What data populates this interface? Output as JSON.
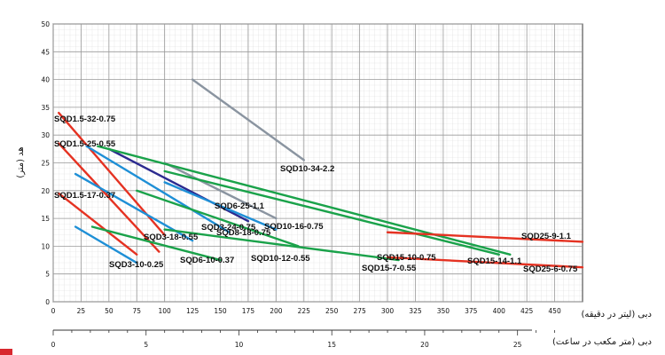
{
  "chart_data": {
    "type": "line",
    "xlabel": "دبی (لیتر در دقیقه)",
    "x2label": "دبی (متر مکعب در ساعت)",
    "ylabel": "هد (متر)",
    "xlim": [
      0,
      475
    ],
    "ylim": [
      0,
      50
    ],
    "x2lim": [
      0,
      28.5
    ],
    "xticks": [
      0,
      25,
      50,
      75,
      100,
      125,
      150,
      175,
      200,
      225,
      250,
      275,
      300,
      325,
      350,
      375,
      400,
      425,
      450
    ],
    "yticks": [
      0,
      5,
      10,
      15,
      20,
      25,
      30,
      35,
      40,
      45,
      50
    ],
    "x2ticks": [
      0,
      5,
      10,
      15,
      20,
      25
    ],
    "grid": true,
    "series": [
      {
        "name": "SQD1.5-32-0.75",
        "color": "#e53222",
        "points": [
          [
            5,
            34
          ],
          [
            100,
            12
          ]
        ]
      },
      {
        "name": "SQD1.5-25-0.55",
        "color": "#e53222",
        "points": [
          [
            5,
            28.5
          ],
          [
            95,
            9
          ]
        ]
      },
      {
        "name": "SQD1.5-17-0.37",
        "color": "#e53222",
        "points": [
          [
            5,
            19.5
          ],
          [
            75,
            8.5
          ]
        ]
      },
      {
        "name": "SQD3-24-0.75",
        "color": "#1e8fd6",
        "points": [
          [
            30,
            28
          ],
          [
            158,
            12.5
          ]
        ]
      },
      {
        "name": "SQD3-18-0.55",
        "color": "#1e8fd6",
        "points": [
          [
            20,
            23
          ],
          [
            125,
            11
          ]
        ]
      },
      {
        "name": "SQD3-10-0.25",
        "color": "#1e8fd6",
        "points": [
          [
            20,
            13.5
          ],
          [
            75,
            7
          ]
        ]
      },
      {
        "name": "SQD6-25-1.1",
        "color": "#2b2a8f",
        "points": [
          [
            50,
            27.5
          ],
          [
            175,
            14.5
          ]
        ]
      },
      {
        "name": "SQD8-18-0.75",
        "color": "#1e8fd6",
        "points": [
          [
            100,
            21.5
          ],
          [
            200,
            13
          ]
        ]
      },
      {
        "name": "SQD10-16-0.75",
        "color": "#8a94a0",
        "points": [
          [
            100,
            25
          ],
          [
            200,
            15
          ]
        ]
      },
      {
        "name": "SQD10-34-2.2",
        "color": "#8a94a0",
        "points": [
          [
            125,
            40
          ],
          [
            225,
            25.5
          ]
        ]
      },
      {
        "name": "SQD6-10-0.37",
        "color": "#1aa24a",
        "points": [
          [
            35,
            13.5
          ],
          [
            150,
            7.5
          ]
        ]
      },
      {
        "name": "SQD10-12-0.55",
        "color": "#1aa24a",
        "points": [
          [
            75,
            20
          ],
          [
            220,
            10
          ]
        ]
      },
      {
        "name": "SQD15-7-0.55",
        "color": "#1aa24a",
        "points": [
          [
            100,
            13
          ],
          [
            310,
            7.5
          ]
        ]
      },
      {
        "name": "SQD15-10-0.75",
        "color": "#1aa24a",
        "points": [
          [
            40,
            28
          ],
          [
            410,
            8.5
          ]
        ]
      },
      {
        "name": "SQD15-14-1.1",
        "color": "#1aa24a",
        "points": [
          [
            100,
            23.5
          ],
          [
            400,
            8.5
          ]
        ]
      },
      {
        "name": "SQD25-9-1.1",
        "color": "#e53222",
        "points": [
          [
            300,
            12.5
          ],
          [
            475,
            10.8
          ]
        ]
      },
      {
        "name": "SQD25-6-0.75",
        "color": "#e53222",
        "points": [
          [
            300,
            8
          ],
          [
            475,
            6.2
          ]
        ]
      }
    ]
  },
  "labels": [
    {
      "text": "SQD1.5-32-0.75"
    },
    {
      "text": "SQD1.5-25-0.55"
    },
    {
      "text": "SQD1.5-17-0.37"
    },
    {
      "text": "SQD3-18-0.55"
    },
    {
      "text": "SQD3-10-0.25"
    },
    {
      "text": "SQD6-10-0.37"
    },
    {
      "text": "SQD3-24-0.75"
    },
    {
      "text": "SQD8-18-0.75"
    },
    {
      "text": "SQD6-25-1.1"
    },
    {
      "text": "SQD10-16-0.75"
    },
    {
      "text": "SQD10-34-2.2"
    },
    {
      "text": "SQD10-12-0.55"
    },
    {
      "text": "SQD15-10-0.75"
    },
    {
      "text": "SQD15-7-0.55"
    },
    {
      "text": "SQD15-14-1.1"
    },
    {
      "text": "SQD25-9-1.1"
    },
    {
      "text": "SQD25-6-0.75"
    }
  ]
}
